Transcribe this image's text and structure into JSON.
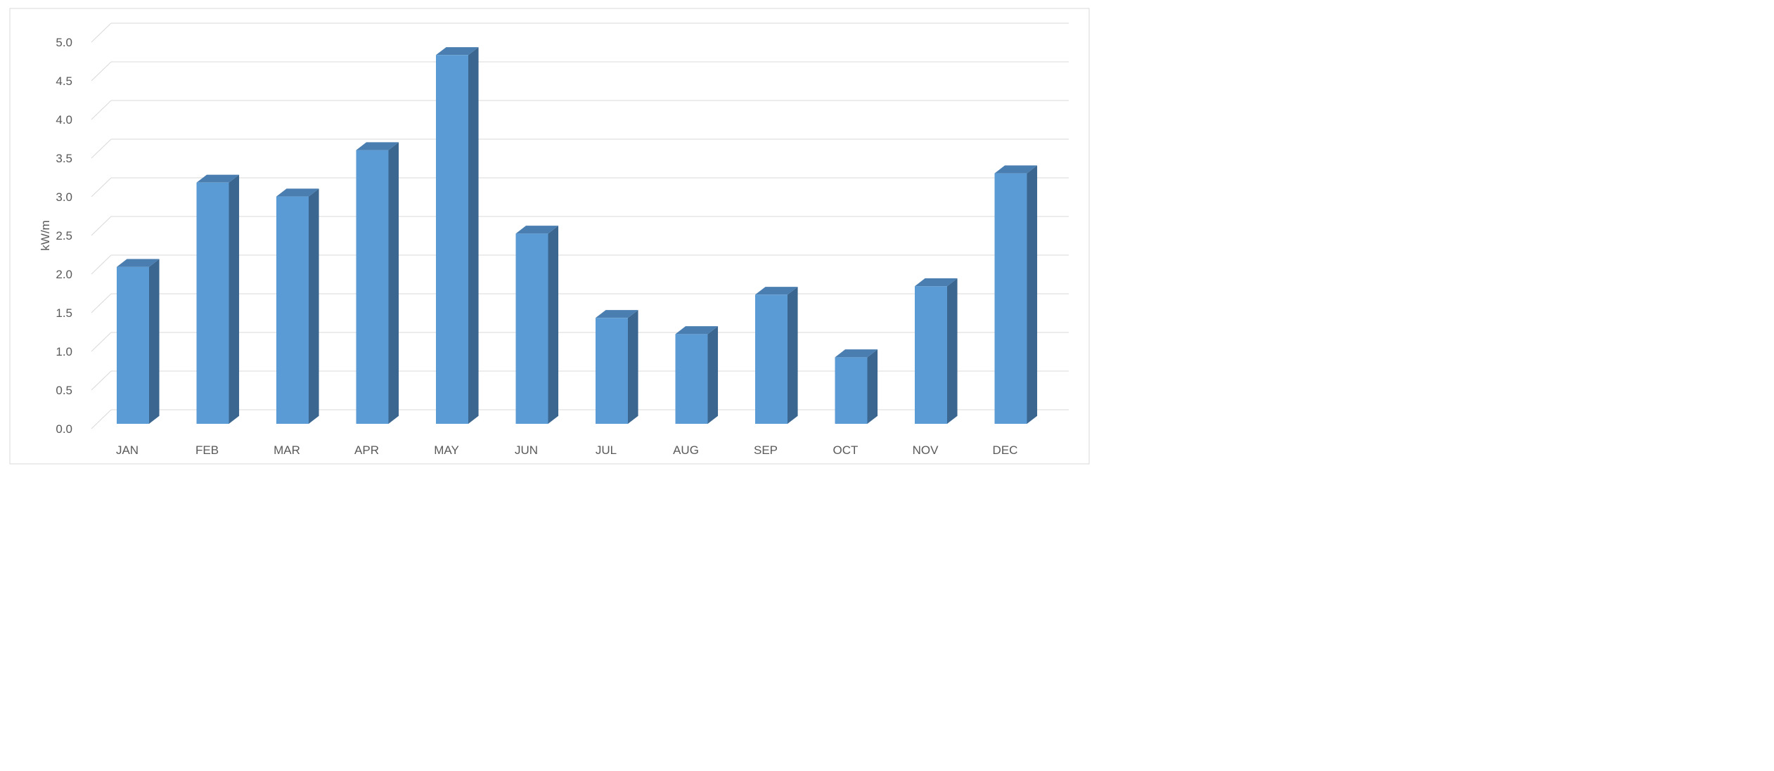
{
  "chart_data": {
    "type": "bar",
    "style": "3d-column",
    "title": "",
    "xlabel": "",
    "ylabel": "kW/m",
    "ylim": [
      0,
      5.0
    ],
    "yticks": [
      "0.0",
      "0.5",
      "1.0",
      "1.5",
      "2.0",
      "2.5",
      "3.0",
      "3.5",
      "4.0",
      "4.5",
      "5.0"
    ],
    "grid": true,
    "legend": "none",
    "categories": [
      "JAN",
      "FEB",
      "MAR",
      "APR",
      "MAY",
      "JUN",
      "JUL",
      "AUG",
      "SEP",
      "OCT",
      "NOV",
      "DEC"
    ],
    "values": [
      2.03,
      3.12,
      2.94,
      3.54,
      4.77,
      2.46,
      1.37,
      1.16,
      1.67,
      0.86,
      1.78,
      3.24
    ],
    "colors": {
      "front": "#5b9bd5",
      "side": "#3a6690",
      "top": "#4a7eb0",
      "grid": "#d9d9d9",
      "border": "#d9d9d9"
    }
  }
}
